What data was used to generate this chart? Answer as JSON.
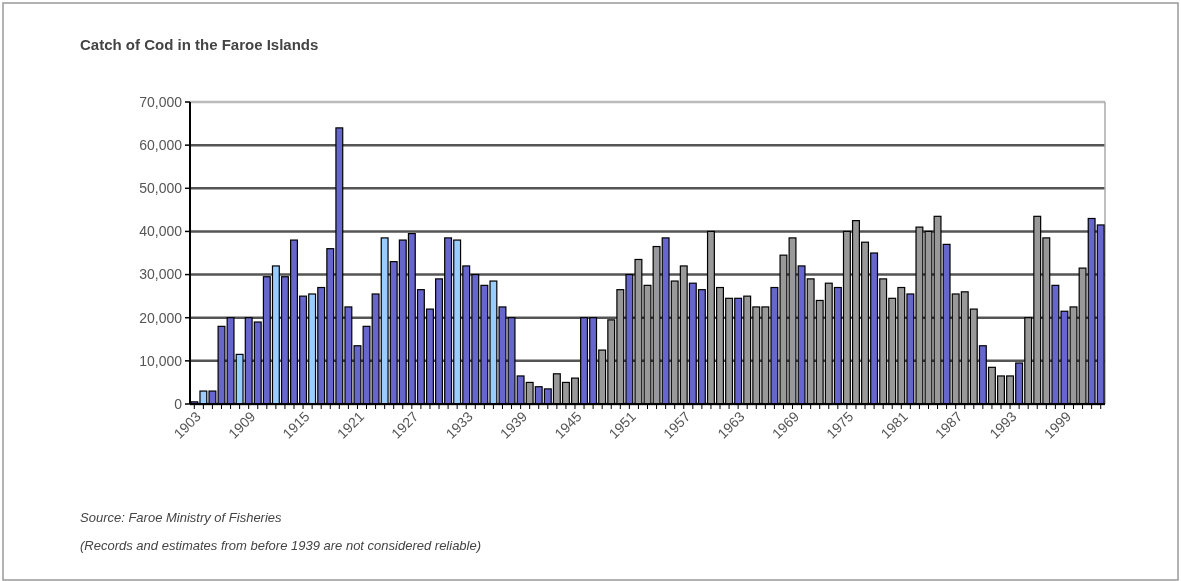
{
  "chart_data": {
    "type": "bar",
    "title": "Catch of Cod in the Faroe Islands",
    "categories": [
      "1903",
      null,
      null,
      null,
      null,
      null,
      "1909",
      null,
      null,
      null,
      null,
      null,
      "1915",
      null,
      null,
      null,
      null,
      null,
      "1921",
      null,
      null,
      null,
      null,
      null,
      "1927",
      null,
      null,
      null,
      null,
      null,
      "1933",
      null,
      null,
      null,
      null,
      null,
      "1939",
      null,
      null,
      null,
      null,
      null,
      "1945",
      null,
      null,
      null,
      null,
      null,
      "1951",
      null,
      null,
      null,
      null,
      null,
      "1957",
      null,
      null,
      null,
      null,
      null,
      "1963",
      null,
      null,
      null,
      null,
      null,
      "1969",
      null,
      null,
      null,
      null,
      null,
      "1975",
      null,
      null,
      null,
      null,
      null,
      "1981",
      null,
      null,
      null,
      null,
      null,
      "1987",
      null,
      null,
      null,
      null,
      null,
      "1993",
      null,
      null,
      null,
      null,
      null,
      "1999",
      null,
      null,
      null,
      null
    ],
    "values": [
      500,
      3000,
      3000,
      18000,
      20000,
      11500,
      20000,
      19000,
      29500,
      32000,
      29500,
      38000,
      25000,
      25500,
      27000,
      36000,
      64000,
      22500,
      13500,
      18000,
      25500,
      38500,
      33000,
      38000,
      39500,
      26500,
      22000,
      29000,
      38500,
      38000,
      32000,
      30000,
      27500,
      28500,
      22500,
      20000,
      6500,
      5000,
      4000,
      3500,
      7000,
      5000,
      6000,
      20000,
      20000,
      12500,
      19500,
      26500,
      30000,
      33500,
      27500,
      36500,
      38500,
      28500,
      32000,
      28000,
      26500,
      40000,
      27000,
      24500,
      24500,
      25000,
      22500,
      22500,
      27000,
      34500,
      38500,
      32000,
      29000,
      24000,
      28000,
      27000,
      40000,
      42500,
      37500,
      35000,
      29000,
      24500,
      27000,
      25500,
      41000,
      40000,
      43500,
      37000,
      25500,
      26000,
      22000,
      13500,
      8500,
      6500,
      6500,
      9500,
      20000,
      43500,
      38500,
      27500,
      21500,
      22500,
      31500,
      43000,
      41500
    ],
    "colors": [
      "#6666cc",
      "#99ccff",
      "#6666cc",
      "#6666cc",
      "#6666cc",
      "#99ccff",
      "#6666cc",
      "#6666cc",
      "#6666cc",
      "#99ccff",
      "#6666cc",
      "#6666cc",
      "#6666cc",
      "#99ccff",
      "#6666cc",
      "#6666cc",
      "#6666cc",
      "#6666cc",
      "#6666cc",
      "#6666cc",
      "#6666cc",
      "#99ccff",
      "#6666cc",
      "#6666cc",
      "#6666cc",
      "#6666cc",
      "#6666cc",
      "#6666cc",
      "#6666cc",
      "#99ccff",
      "#6666cc",
      "#6666cc",
      "#6666cc",
      "#99ccff",
      "#6666cc",
      "#6666cc",
      "#6666cc",
      "#999999",
      "#6666cc",
      "#6666cc",
      "#999999",
      "#999999",
      "#999999",
      "#6666cc",
      "#6666cc",
      "#999999",
      "#999999",
      "#999999",
      "#6666cc",
      "#999999",
      "#999999",
      "#999999",
      "#6666cc",
      "#999999",
      "#999999",
      "#6666cc",
      "#6666cc",
      "#999999",
      "#999999",
      "#999999",
      "#6666cc",
      "#999999",
      "#999999",
      "#999999",
      "#6666cc",
      "#999999",
      "#999999",
      "#6666cc",
      "#999999",
      "#999999",
      "#999999",
      "#6666cc",
      "#999999",
      "#999999",
      "#999999",
      "#6666cc",
      "#999999",
      "#999999",
      "#999999",
      "#6666cc",
      "#999999",
      "#999999",
      "#999999",
      "#6666cc",
      "#999999",
      "#999999",
      "#999999",
      "#6666cc",
      "#999999",
      "#999999",
      "#999999",
      "#6666cc",
      "#999999",
      "#999999",
      "#999999",
      "#6666cc",
      "#6666cc",
      "#999999",
      "#999999",
      "#6666cc",
      "#6666cc"
    ],
    "ylim": [
      0,
      70000
    ],
    "yticks": [
      {
        "value": 0,
        "label": "0"
      },
      {
        "value": 10000,
        "label": "10,000"
      },
      {
        "value": 20000,
        "label": "20,000"
      },
      {
        "value": 30000,
        "label": "30,000"
      },
      {
        "value": 40000,
        "label": "40,000"
      },
      {
        "value": 50000,
        "label": "50,000"
      },
      {
        "value": 60000,
        "label": "60,000"
      },
      {
        "value": 70000,
        "label": "70,000"
      }
    ],
    "grid": "y",
    "annotations": [
      "Source: Faroe Ministry of Fisheries",
      "(Records and estimates from before 1939 are not considered reliable)"
    ]
  }
}
